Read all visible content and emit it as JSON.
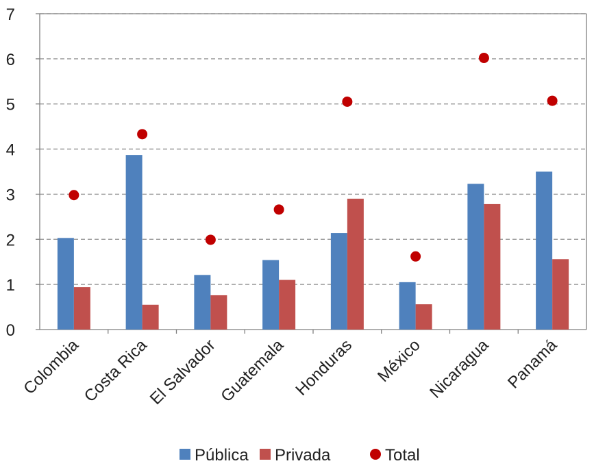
{
  "chart_data": {
    "type": "bar",
    "categories": [
      "Colombia",
      "Costa Rica",
      "El Salvador",
      "Guatemala",
      "Honduras",
      "México",
      "Nicaragua",
      "Panamá"
    ],
    "series": [
      {
        "name": "Pública",
        "type": "bar",
        "color": "#4f81bd",
        "values": [
          2.03,
          3.87,
          1.21,
          1.54,
          2.14,
          1.05,
          3.23,
          3.5
        ]
      },
      {
        "name": "Privada",
        "type": "bar",
        "color": "#c0504d",
        "values": [
          0.94,
          0.55,
          0.76,
          1.1,
          2.9,
          0.56,
          2.78,
          1.56
        ]
      },
      {
        "name": "Total",
        "type": "scatter",
        "color": "#c00000",
        "values": [
          2.98,
          4.33,
          1.99,
          2.66,
          5.05,
          1.62,
          6.02,
          5.07
        ]
      }
    ],
    "ylim": [
      0,
      7
    ],
    "yticks": [
      "0",
      "1",
      "2",
      "3",
      "4",
      "5",
      "6",
      "7"
    ],
    "grid": true,
    "legend": "bottom"
  }
}
